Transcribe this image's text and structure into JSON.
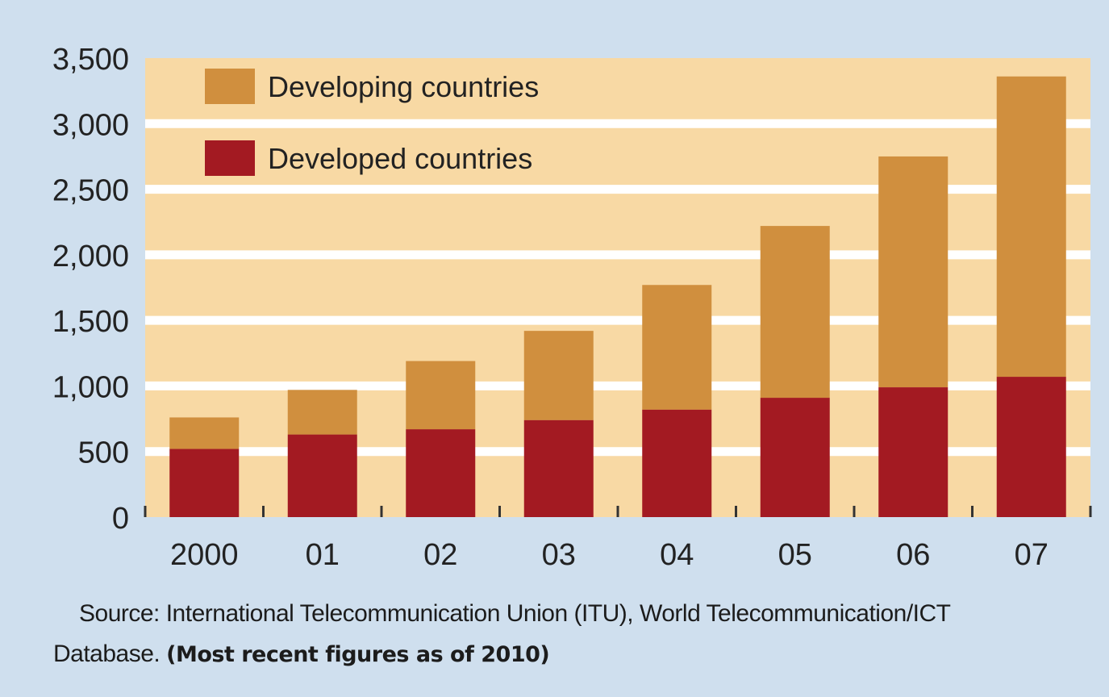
{
  "colors": {
    "background": "#cfdfee",
    "plot_area": "#f8d9a4",
    "grid": "#ffffff",
    "developing": "#d08f3e",
    "developed": "#a31a22"
  },
  "chart_data": {
    "type": "bar",
    "stacked": true,
    "categories": [
      "2000",
      "01",
      "02",
      "03",
      "04",
      "05",
      "06",
      "07"
    ],
    "series": [
      {
        "name": "Developed countries",
        "color": "#a31a22",
        "values": [
          520,
          630,
          670,
          740,
          820,
          910,
          990,
          1070
        ]
      },
      {
        "name": "Developing countries",
        "color": "#d08f3e",
        "values": [
          240,
          340,
          520,
          680,
          950,
          1310,
          1760,
          2290
        ]
      }
    ],
    "y_ticks": [
      "0",
      "500",
      "1,000",
      "1,500",
      "2,000",
      "2,500",
      "3,000",
      "3,500"
    ],
    "ylim": [
      0,
      3500
    ],
    "grid": true,
    "legend_position": "top-left",
    "legend_order": [
      "Developing countries",
      "Developed countries"
    ],
    "title": "",
    "xlabel": "",
    "ylabel": ""
  },
  "source": {
    "line1": "Source: International Telecommunication Union (ITU), World Telecommunication/ICT",
    "line2": "Database.",
    "note": "(Most recent figures as of 2010)"
  }
}
